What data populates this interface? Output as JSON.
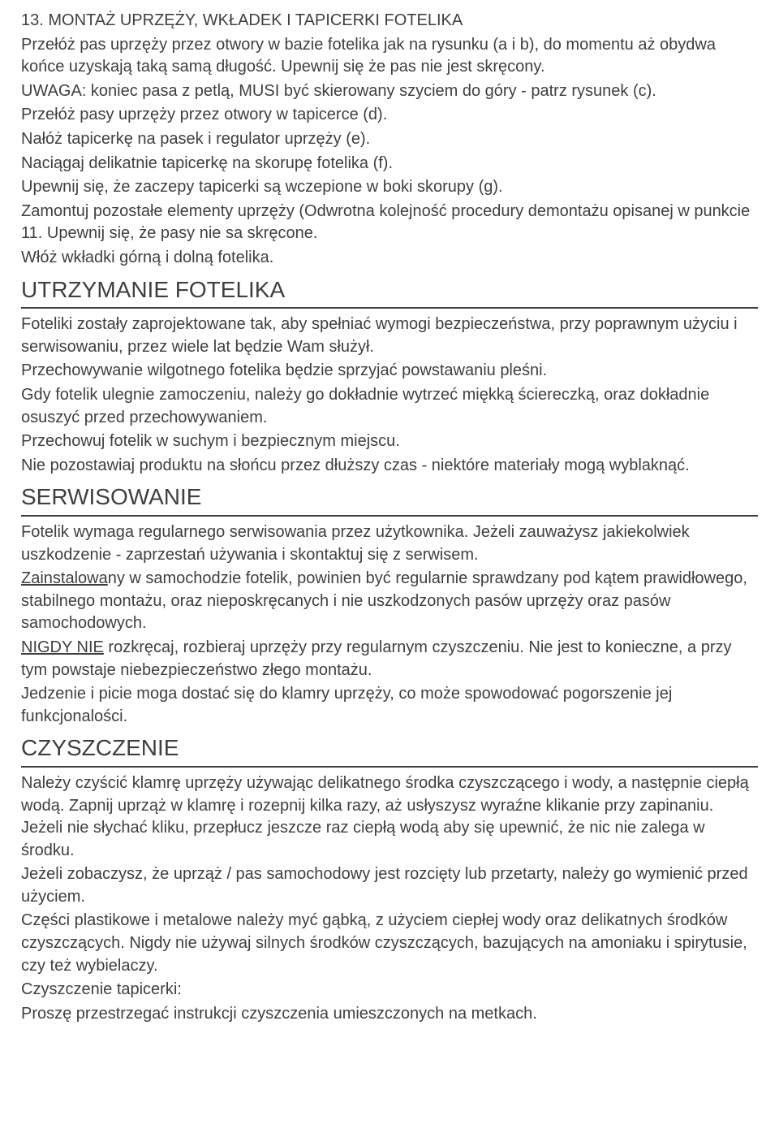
{
  "typography": {
    "body_fontsize_pt": 15,
    "body_lineheight": 1.38,
    "section_fontsize_pt": 21,
    "text_color": "#3f3f3f",
    "rule_color": "#3f3f3f",
    "background_color": "#ffffff",
    "font_family": "Arial"
  },
  "section13": {
    "heading": "13. MONTAŻ UPRZĘŻY, WKŁADEK I TAPICERKI FOTELIKA",
    "p1": "Przełóż pas uprzęży przez otwory w bazie fotelika jak na rysunku (a i b), do momentu aż obydwa końce uzyskają taką samą długość. Upewnij się że pas nie jest skręcony.",
    "p2": "UWAGA: koniec pasa z petlą, MUSI być skierowany szyciem do góry - patrz rysunek (c).",
    "p3": "Przełóż pasy uprzęży przez otwory w tapicerce (d).",
    "p4": "Nałóż tapicerkę na pasek i regulator uprzęży (e).",
    "p5": "Naciągaj delikatnie tapicerkę na skorupę fotelika (f).",
    "p6": "Upewnij się, że zaczepy tapicerki są wczepione w boki skorupy (g).",
    "p7": "Zamontuj pozostałe elementy uprzęży (Odwrotna kolejność procedury demontażu opisanej w punkcie 11. Upewnij się, że pasy nie sa skręcone.",
    "p8": "Włóż wkładki górną i dolną fotelika."
  },
  "utrzymanie": {
    "heading": "UTRZYMANIE FOTELIKA",
    "p1": "Foteliki zostały zaprojektowane tak, aby spełniać wymogi bezpieczeństwa, przy poprawnym użyciu i serwisowaniu, przez wiele lat będzie Wam służył.",
    "p2": "Przechowywanie wilgotnego fotelika będzie sprzyjać powstawaniu pleśni.",
    "p3": "Gdy fotelik ulegnie zamoczeniu, należy go dokładnie wytrzeć miękką ściereczką, oraz dokładnie osuszyć przed przechowywaniem.",
    "p4": "Przechowuj fotelik w suchym i bezpiecznym miejscu.",
    "p5": "Nie pozostawiaj produktu na słońcu przez dłuższy czas - niektóre materiały mogą wyblaknąć."
  },
  "serwis": {
    "heading": "SERWISOWANIE",
    "p1": "Fotelik wymaga regularnego serwisowania przez użytkownika. Jeżeli zauważysz jakiekolwiek uszkodzenie - zaprzestań używania i skontaktuj się z serwisem.",
    "p2_before": "",
    "p2_underlined": "Zainstalowa",
    "p2_after": "ny w samochodzie fotelik, powinien być regularnie sprawdzany pod kątem prawidłowego, stabilnego montażu, oraz nieposkręcanych i nie uszkodzonych pasów uprzęży oraz pasów samochodowych.",
    "p3_underlined": "NIGDY NIE",
    "p3_after": " rozkręcaj, rozbieraj uprzęży przy regularnym czyszczeniu. Nie jest to konieczne, a przy tym powstaje niebezpieczeństwo złego montażu.",
    "p4": "Jedzenie i picie moga dostać się do klamry uprzęży, co może spowodować pogorszenie jej funkcjonalości."
  },
  "czyszczenie": {
    "heading": "CZYSZCZENIE",
    "p1": "Należy czyścić klamrę uprzęży używając delikatnego środka czyszczącego i wody, a następnie ciepłą wodą. Zapnij uprząż w klamrę i rozepnij kilka razy, aż usłyszysz wyraźne klikanie przy zapinaniu. Jeżeli nie słychać kliku, przepłucz jeszcze raz ciepłą wodą aby się upewnić, że nic nie zalega w środku.",
    "p2": "Jeżeli zobaczysz, że uprząż / pas samochodowy jest rozcięty lub przetarty, należy go wymienić przed użyciem.",
    "p3": "Części plastikowe i metalowe należy myć gąbką, z użyciem ciepłej wody oraz delikatnych środków czyszczących. Nigdy nie używaj silnych środków czyszczących, bazujących na amoniaku i spirytusie, czy też wybielaczy.",
    "p4": "Czyszczenie tapicerki:",
    "p5": "Proszę przestrzegać instrukcji czyszczenia umieszczonych na metkach."
  }
}
